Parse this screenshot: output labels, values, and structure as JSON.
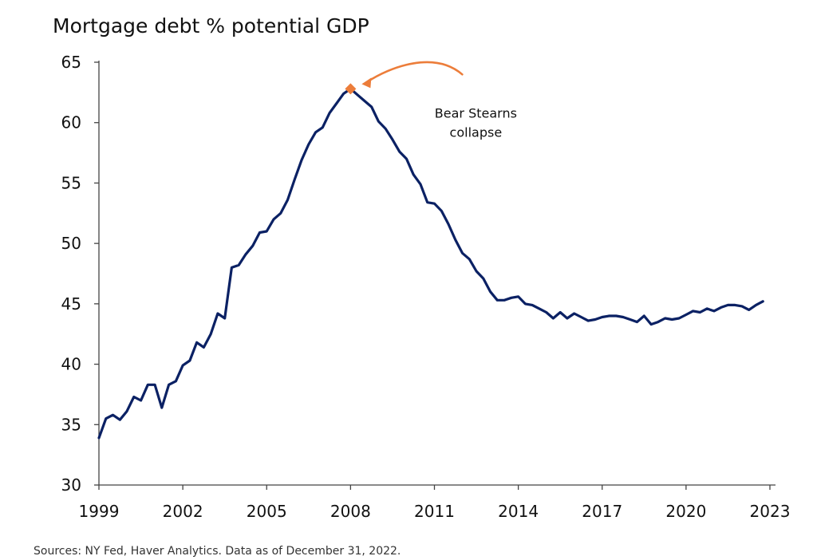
{
  "title": "Mortgage debt % potential GDP",
  "source": "Sources: NY Fed, Haver Analytics. Data as of December 31, 2022.",
  "colors": {
    "line": "#0b2164",
    "annotation": "#ec7d3a",
    "axis": "#444444"
  },
  "chart_data": {
    "type": "line",
    "title": "Mortgage debt % potential GDP",
    "xlabel": "",
    "ylabel": "",
    "xlim": [
      1999,
      2023.2
    ],
    "ylim": [
      30,
      65
    ],
    "x_ticks": [
      1999,
      2002,
      2005,
      2008,
      2011,
      2014,
      2017,
      2020,
      2023
    ],
    "y_ticks": [
      30,
      35,
      40,
      45,
      50,
      55,
      60,
      65
    ],
    "grid": false,
    "series": [
      {
        "name": "",
        "x": [
          1999.0,
          1999.25,
          1999.5,
          1999.75,
          2000.0,
          2000.25,
          2000.5,
          2000.75,
          2001.0,
          2001.25,
          2001.5,
          2001.75,
          2002.0,
          2002.25,
          2002.5,
          2002.75,
          2003.0,
          2003.25,
          2003.5,
          2003.75,
          2004.0,
          2004.25,
          2004.5,
          2004.75,
          2005.0,
          2005.25,
          2005.5,
          2005.75,
          2006.0,
          2006.25,
          2006.5,
          2006.75,
          2007.0,
          2007.25,
          2007.5,
          2007.75,
          2008.0,
          2008.25,
          2008.5,
          2008.75,
          2009.0,
          2009.25,
          2009.5,
          2009.75,
          2010.0,
          2010.25,
          2010.5,
          2010.75,
          2011.0,
          2011.25,
          2011.5,
          2011.75,
          2012.0,
          2012.25,
          2012.5,
          2012.75,
          2013.0,
          2013.25,
          2013.5,
          2013.75,
          2014.0,
          2014.25,
          2014.5,
          2014.75,
          2015.0,
          2015.25,
          2015.5,
          2015.75,
          2016.0,
          2016.25,
          2016.5,
          2016.75,
          2017.0,
          2017.25,
          2017.5,
          2017.75,
          2018.0,
          2018.25,
          2018.5,
          2018.75,
          2019.0,
          2019.25,
          2019.5,
          2019.75,
          2020.0,
          2020.25,
          2020.5,
          2020.75,
          2021.0,
          2021.25,
          2021.5,
          2021.75,
          2022.0,
          2022.25,
          2022.5,
          2022.75
        ],
        "values": [
          33.9,
          35.5,
          35.8,
          35.4,
          36.1,
          37.3,
          37.0,
          38.3,
          38.3,
          36.4,
          38.3,
          38.6,
          39.9,
          40.3,
          41.8,
          41.4,
          42.5,
          44.2,
          43.8,
          48.0,
          48.2,
          49.1,
          49.8,
          50.9,
          51.0,
          52.0,
          52.5,
          53.6,
          55.3,
          56.9,
          58.2,
          59.2,
          59.6,
          60.8,
          61.6,
          62.4,
          62.8,
          62.3,
          61.8,
          61.3,
          60.1,
          59.5,
          58.6,
          57.6,
          57.0,
          55.7,
          54.9,
          53.4,
          53.3,
          52.7,
          51.6,
          50.3,
          49.2,
          48.7,
          47.7,
          47.1,
          46.0,
          45.3,
          45.3,
          45.5,
          45.6,
          45.0,
          44.9,
          44.6,
          44.3,
          43.8,
          44.3,
          43.8,
          44.2,
          43.9,
          43.6,
          43.7,
          43.9,
          44.0,
          44.0,
          43.9,
          43.7,
          43.5,
          44.0,
          43.3,
          43.5,
          43.8,
          43.7,
          43.8,
          44.1,
          44.4,
          44.3,
          44.6,
          44.4,
          44.7,
          44.9,
          44.9,
          44.8,
          44.5,
          44.9,
          45.2
        ]
      }
    ],
    "annotations": [
      {
        "text_lines": [
          "Bear Stearns",
          "collapse"
        ],
        "x": 2008.0,
        "y": 62.8,
        "marker": "diamond"
      }
    ]
  }
}
